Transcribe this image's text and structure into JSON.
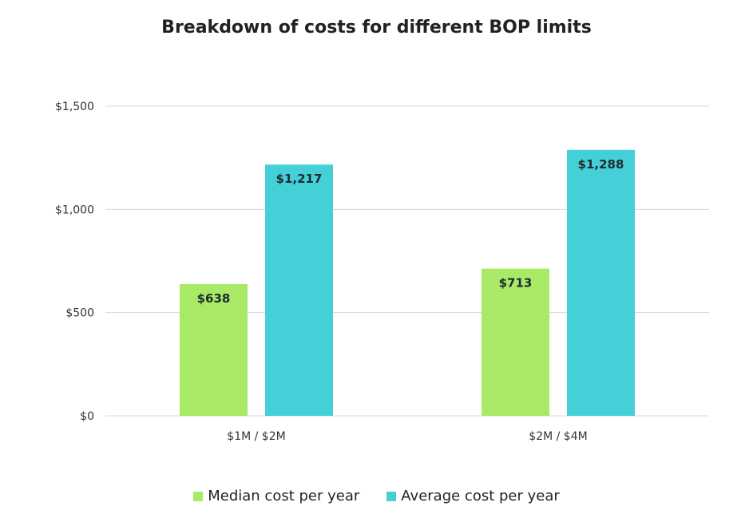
{
  "chart_data": {
    "type": "bar",
    "title": "Breakdown of costs for different BOP limits",
    "xlabel": "",
    "ylabel": "",
    "categories": [
      "$1M / $2M",
      "$2M / $4M"
    ],
    "series": [
      {
        "name": "Median cost per year",
        "color": "#a8e965",
        "values": [
          638,
          713
        ],
        "labels": [
          "$638",
          "$713"
        ]
      },
      {
        "name": "Average cost per year",
        "color": "#45d0d8",
        "values": [
          1217,
          1288
        ],
        "labels": [
          "$1,217",
          "$1,288"
        ]
      }
    ],
    "ylim": [
      0,
      1500
    ],
    "yticks": [
      0,
      500,
      1000,
      1500
    ],
    "ytick_labels": [
      "$0",
      "$500",
      "$1,000",
      "$1,500"
    ],
    "grid": true,
    "legend_position": "bottom-center"
  }
}
